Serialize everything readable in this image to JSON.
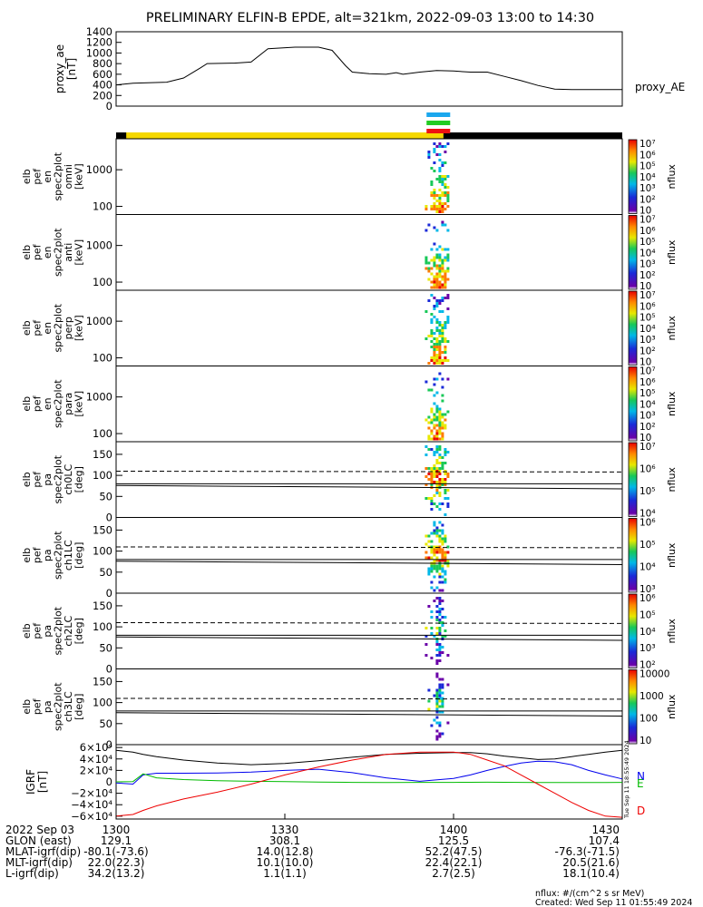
{
  "title": "PRELIMINARY ELFIN-B EPDE, alt=321km, 2022-09-03 13:00 to 14:30",
  "chart_data": {
    "type": "line",
    "ae_panel": {
      "ylabel_lines": [
        "proxy_ae",
        "[nT]"
      ],
      "yticks": [
        "0",
        "200",
        "400",
        "600",
        "800",
        "1000",
        "1200",
        "1400"
      ],
      "ylim": [
        0,
        1400
      ],
      "series_label": "proxy_AE",
      "x_hours": [
        0.0,
        0.05,
        0.15,
        0.2,
        0.25,
        0.27,
        0.35,
        0.4,
        0.45,
        0.53,
        0.6,
        0.64,
        0.68,
        0.7,
        0.75,
        0.8,
        0.83,
        0.85,
        0.9,
        0.95,
        1.0,
        1.05,
        1.1,
        1.15,
        1.2,
        1.25,
        1.3,
        1.35,
        1.4,
        1.5
      ],
      "values": [
        400,
        430,
        450,
        530,
        720,
        800,
        810,
        830,
        1080,
        1110,
        1110,
        1050,
        760,
        640,
        610,
        600,
        630,
        600,
        640,
        670,
        660,
        640,
        640,
        560,
        480,
        390,
        320,
        310,
        310,
        310
      ]
    },
    "orbit_bar": {
      "colors": [
        "#000000",
        "#f5d800",
        "#000000"
      ],
      "sunlit_start_hour": 0.03,
      "sunlit_end_hour": 0.97
    },
    "sci_zone_bars": {
      "colors": [
        "#1aa7ee",
        "#22cc22",
        "#ee1111"
      ],
      "start_hour": 0.92,
      "end_hour": 0.99
    },
    "spectrogram_panels": [
      {
        "ylabel_lines": [
          "elb",
          "pef",
          "en",
          "spec2plot",
          "omni",
          "[keV]"
        ],
        "yticks": [
          "100",
          "1000"
        ],
        "scale": "log",
        "cb_ticks": [
          "10⁷",
          "10⁶",
          "10⁵",
          "10⁴",
          "10³",
          "10²",
          "10"
        ],
        "cb_label": "nflux"
      },
      {
        "ylabel_lines": [
          "elb",
          "pef",
          "en",
          "spec2plot",
          "anti",
          "[keV]"
        ],
        "yticks": [
          "100",
          "1000"
        ],
        "scale": "log",
        "cb_ticks": [
          "10⁷",
          "10⁶",
          "10⁵",
          "10⁴",
          "10³",
          "10²",
          "10"
        ],
        "cb_label": "nflux"
      },
      {
        "ylabel_lines": [
          "elb",
          "pef",
          "en",
          "spec2plot",
          "perp",
          "[keV]"
        ],
        "yticks": [
          "100",
          "1000"
        ],
        "scale": "log",
        "cb_ticks": [
          "10⁷",
          "10⁶",
          "10⁵",
          "10⁴",
          "10³",
          "10²",
          "10"
        ],
        "cb_label": "nflux"
      },
      {
        "ylabel_lines": [
          "elb",
          "pef",
          "en",
          "spec2plot",
          "para",
          "[keV]"
        ],
        "yticks": [
          "100",
          "1000"
        ],
        "scale": "log",
        "cb_ticks": [
          "10⁷",
          "10⁶",
          "10⁵",
          "10⁴",
          "10³",
          "10²",
          "10"
        ],
        "cb_label": "nflux"
      },
      {
        "ylabel_lines": [
          "elb",
          "pef",
          "pa",
          "spec2plot",
          "ch0LC",
          "[deg]"
        ],
        "yticks": [
          "0",
          "50",
          "100",
          "150"
        ],
        "scale": "lin",
        "ylim": [
          0,
          180
        ],
        "dashed_deg": 110,
        "solid_deg": [
          80,
          70
        ],
        "cb_ticks": [
          "10⁷",
          "10⁶",
          "10⁵",
          "10⁴"
        ],
        "cb_label": "nflux"
      },
      {
        "ylabel_lines": [
          "elb",
          "pef",
          "pa",
          "spec2plot",
          "ch1LC",
          "[deg]"
        ],
        "yticks": [
          "0",
          "50",
          "100",
          "150"
        ],
        "scale": "lin",
        "ylim": [
          0,
          180
        ],
        "dashed_deg": 110,
        "solid_deg": [
          80,
          70
        ],
        "cb_ticks": [
          "10⁶",
          "10⁵",
          "10⁴",
          "10³"
        ],
        "cb_label": "nflux"
      },
      {
        "ylabel_lines": [
          "elb",
          "pef",
          "pa",
          "spec2plot",
          "ch2LC",
          "[deg]"
        ],
        "yticks": [
          "0",
          "50",
          "100",
          "150"
        ],
        "scale": "lin",
        "ylim": [
          0,
          180
        ],
        "dashed_deg": 110,
        "solid_deg": [
          80,
          70
        ],
        "cb_ticks": [
          "10⁶",
          "10⁵",
          "10⁴",
          "10³",
          "10²"
        ],
        "cb_label": "nflux"
      },
      {
        "ylabel_lines": [
          "elb",
          "pef",
          "pa",
          "spec2plot",
          "ch3LC",
          "[deg]"
        ],
        "yticks": [
          "0",
          "50",
          "100",
          "150"
        ],
        "scale": "lin",
        "ylim": [
          0,
          180
        ],
        "dashed_deg": 110,
        "solid_deg": [
          80,
          70
        ],
        "cb_ticks": [
          "10000",
          "1000",
          "100",
          "10"
        ],
        "cb_label": "nflux"
      }
    ],
    "igrf_panel": {
      "ylabel_lines": [
        "IGRF",
        "[nT]"
      ],
      "yticks": [
        "−6×10⁴",
        "−4×10⁴",
        "−2×10⁴",
        "0",
        "2×10⁴",
        "4×10⁴",
        "6×10⁴"
      ],
      "ylim": [
        -65000,
        65000
      ],
      "legend": [
        "N",
        "E",
        "D"
      ],
      "legend_colors": [
        "#0000ee",
        "#00bb00",
        "#ee0000"
      ],
      "x_hours": [
        0.0,
        0.05,
        0.08,
        0.12,
        0.2,
        0.3,
        0.4,
        0.5,
        0.6,
        0.7,
        0.8,
        0.9,
        1.0,
        1.05,
        1.1,
        1.15,
        1.2,
        1.25,
        1.3,
        1.35,
        1.4,
        1.45,
        1.5
      ],
      "total": [
        55000,
        52000,
        48000,
        44000,
        38000,
        33000,
        30000,
        32000,
        37000,
        43000,
        48000,
        50000,
        51000,
        51000,
        49000,
        45000,
        42000,
        39000,
        40000,
        44000,
        48000,
        52000,
        55000
      ],
      "north": [
        -2000,
        -4000,
        12000,
        15000,
        15000,
        15500,
        17000,
        20000,
        22000,
        16000,
        7000,
        1000,
        6000,
        12000,
        20000,
        27000,
        33000,
        36000,
        35000,
        30000,
        20000,
        12000,
        5000
      ],
      "east": [
        0,
        500,
        14000,
        7000,
        4000,
        2000,
        1000,
        300,
        -500,
        -1000,
        -1200,
        -1000,
        -1000,
        -800,
        -700,
        -800,
        -1000,
        -1200,
        -1300,
        -1300,
        -1200,
        -1100,
        -1000
      ],
      "down": [
        -60000,
        -57000,
        -50000,
        -42000,
        -30000,
        -18000,
        -4000,
        12000,
        26000,
        38000,
        48000,
        52000,
        52000,
        48000,
        38000,
        28000,
        12000,
        -4000,
        -20000,
        -36000,
        -50000,
        -60000,
        -62000
      ]
    },
    "vertical_stamp": "Tue Sep 11 18:55:49 2024",
    "x_ticks": [
      "1300",
      "1330",
      "1400",
      "1430"
    ],
    "xlim_hours": [
      0,
      1.5
    ],
    "ephemeris": {
      "rows": [
        {
          "label": "2022 Sep 03",
          "values": [
            "1300",
            "1330",
            "1400",
            "1430"
          ]
        },
        {
          "label": "GLON (east)",
          "values": [
            "129.1",
            "308.1",
            "125.5",
            "107.4"
          ]
        },
        {
          "label": "MLAT-igrf(dip)",
          "values": [
            "-80.1(-73.6)",
            "14.0(12.8)",
            "52.2(47.5)",
            "-76.3(-71.5)"
          ]
        },
        {
          "label": "MLT-igrf(dip)",
          "values": [
            "22.0(22.3)",
            "10.1(10.0)",
            "22.4(22.1)",
            "20.5(21.6)"
          ]
        },
        {
          "label": "L-igrf(dip)",
          "values": [
            "34.2(13.2)",
            "1.1(1.1)",
            "2.7(2.5)",
            "18.1(10.4)"
          ]
        }
      ]
    },
    "footer": {
      "units": "nflux: #/(cm^2 s sr MeV)",
      "created": "Created: Wed Sep 11 01:55:49 2024"
    }
  }
}
